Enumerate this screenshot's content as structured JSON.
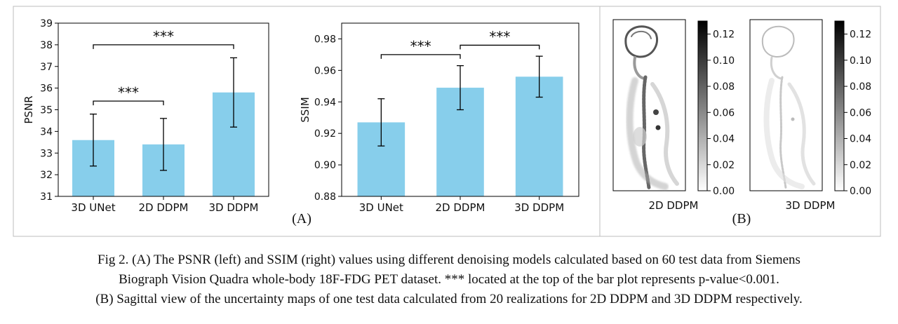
{
  "panel_labels": {
    "a": "(A)",
    "b": "(B)"
  },
  "chart_data": [
    {
      "type": "bar",
      "categories": [
        "3D UNet",
        "2D DDPM",
        "3D DDPM"
      ],
      "values": [
        33.6,
        33.4,
        35.8
      ],
      "errors": [
        1.2,
        1.2,
        1.6
      ],
      "title": "",
      "xlabel": "",
      "ylabel": "PSNR",
      "ylim": [
        31,
        39
      ],
      "yticks": [
        "31",
        "32",
        "33",
        "34",
        "35",
        "36",
        "37",
        "38",
        "39"
      ],
      "bar_color": "#87CEEB",
      "significance": [
        {
          "from": 0,
          "to": 1,
          "label": "***",
          "y": 35.4
        },
        {
          "from": 0,
          "to": 2,
          "label": "***",
          "y": 38.0
        }
      ]
    },
    {
      "type": "bar",
      "categories": [
        "3D UNet",
        "2D DDPM",
        "3D DDPM"
      ],
      "values": [
        0.927,
        0.949,
        0.956
      ],
      "errors": [
        0.015,
        0.014,
        0.013
      ],
      "title": "",
      "xlabel": "",
      "ylabel": "SSIM",
      "ylim": [
        0.88,
        0.99
      ],
      "yticks": [
        "0.88",
        "0.90",
        "0.92",
        "0.94",
        "0.96",
        "0.98"
      ],
      "bar_color": "#87CEEB",
      "significance": [
        {
          "from": 0,
          "to": 1,
          "label": "***",
          "y": 0.97
        },
        {
          "from": 1,
          "to": 2,
          "label": "***",
          "y": 0.976
        }
      ]
    }
  ],
  "uncertainty_maps": [
    {
      "label": "2D DDPM",
      "colorbar_ticks": [
        "0.00",
        "0.02",
        "0.04",
        "0.06",
        "0.08",
        "0.10",
        "0.12"
      ],
      "colorbar_range": [
        0,
        0.13
      ]
    },
    {
      "label": "3D DDPM",
      "colorbar_ticks": [
        "0.00",
        "0.02",
        "0.04",
        "0.06",
        "0.08",
        "0.10",
        "0.12"
      ],
      "colorbar_range": [
        0,
        0.13
      ]
    }
  ],
  "caption": {
    "line1": "Fig 2. (A) The PSNR (left) and SSIM (right) values using different denoising models calculated based on 60 test data from Siemens",
    "line2": "Biograph Vision Quadra whole-body 18F-FDG PET dataset. *** located at the top of the bar plot represents p-value<0.001.",
    "line3": "(B) Sagittal view of the uncertainty maps of one test data calculated from 20 realizations for 2D DDPM and 3D DDPM respectively."
  }
}
